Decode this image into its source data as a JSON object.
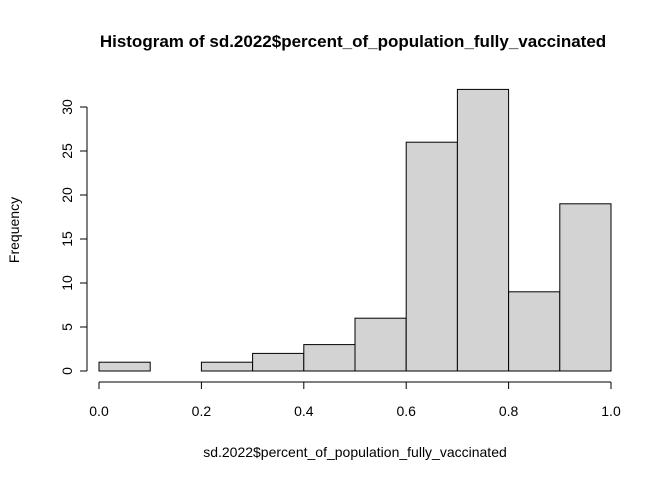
{
  "chart_data": {
    "type": "bar",
    "title": "Histogram of sd.2022$percent_of_population_fully_vaccinated",
    "xlabel": "sd.2022$percent_of_population_fully_vaccinated",
    "ylabel": "Frequency",
    "bin_edges": [
      0.0,
      0.1,
      0.2,
      0.3,
      0.4,
      0.5,
      0.6,
      0.7,
      0.8,
      0.9,
      1.0
    ],
    "values": [
      1,
      0,
      1,
      2,
      3,
      6,
      26,
      32,
      9,
      19
    ],
    "xlim": [
      0.0,
      1.0
    ],
    "ylim": [
      0,
      32
    ],
    "x_ticks": [
      0.0,
      0.2,
      0.4,
      0.6,
      0.8,
      1.0
    ],
    "x_tick_labels": [
      "0.0",
      "0.2",
      "0.4",
      "0.6",
      "0.8",
      "1.0"
    ],
    "y_ticks": [
      0,
      5,
      10,
      15,
      20,
      25,
      30
    ],
    "y_tick_labels": [
      "0",
      "5",
      "10",
      "15",
      "20",
      "25",
      "30"
    ],
    "bar_fill": "#d3d3d3",
    "bar_stroke": "#000000",
    "grid": false
  }
}
